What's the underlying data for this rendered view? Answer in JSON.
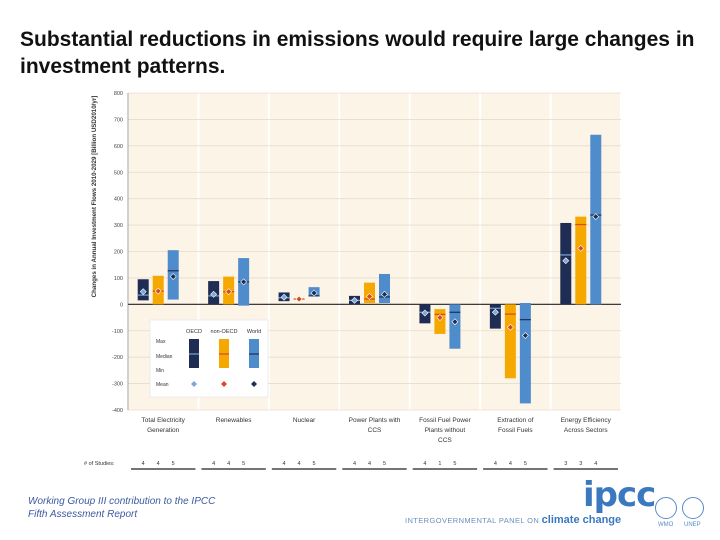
{
  "slide": {
    "title": "Substantial reductions in emissions would require large changes in investment patterns.",
    "footer": "Working Group III contribution to the IPCC Fifth Assessment Report",
    "logo": {
      "name": "ipcc",
      "tagline_prefix": "INTERGOVERNMENTAL PANEL ON",
      "tagline_emphasis": "climate change",
      "partners": [
        "WMO",
        "UNEP"
      ]
    }
  },
  "chart_data": {
    "type": "bar",
    "subtype": "range-bar (min-max with median and mean)",
    "ylabel": "Changes in Annual Investment Flows 2010-2029 [Billion USD2010/yr]",
    "ylim": [
      -400,
      800
    ],
    "yticks": [
      800,
      700,
      600,
      500,
      400,
      300,
      200,
      100,
      0,
      -100,
      -200,
      -300,
      -400
    ],
    "grid": true,
    "categories": [
      "Total Electricity Generation",
      "Renewables",
      "Nuclear",
      "Power Plants with CCS",
      "Fossil Fuel Power Plants without CCS",
      "Extraction of Fossil Fuels",
      "Energy Efficiency Across Sectors"
    ],
    "series": [
      {
        "name": "OECD",
        "color": "#1f2d55",
        "median_color": "#7aa6d8",
        "mean_color": "#7aa6d8",
        "min": [
          15,
          0,
          12,
          0,
          -72,
          -92,
          0
        ],
        "max": [
          95,
          88,
          45,
          32,
          0,
          0,
          308
        ],
        "median": [
          35,
          32,
          25,
          15,
          -30,
          -15,
          187
        ],
        "mean": [
          48,
          38,
          27,
          15,
          -33,
          -30,
          165
        ],
        "n_studies": [
          4,
          4,
          4,
          4,
          4,
          4,
          3
        ]
      },
      {
        "name": "non-OECD",
        "color": "#f5a800",
        "median_color": "#d9481e",
        "mean_color": "#d9481e",
        "min": [
          0,
          0,
          20,
          5,
          -112,
          -280,
          0
        ],
        "max": [
          108,
          105,
          20,
          82,
          -18,
          0,
          332
        ],
        "median": [
          50,
          48,
          20,
          20,
          -38,
          -37,
          302
        ],
        "mean": [
          50,
          48,
          20,
          30,
          -50,
          -87,
          212
        ],
        "n_studies": [
          4,
          4,
          4,
          4,
          1,
          4,
          3
        ]
      },
      {
        "name": "World",
        "color": "#4f8ccc",
        "median_color": "#1f2d55",
        "mean_color": "#1f2d55",
        "min": [
          18,
          -5,
          32,
          5,
          -168,
          -375,
          0
        ],
        "max": [
          205,
          175,
          65,
          115,
          0,
          5,
          642
        ],
        "median": [
          127,
          85,
          32,
          28,
          -30,
          -58,
          338
        ],
        "mean": [
          105,
          85,
          43,
          38,
          -66,
          -118,
          332
        ],
        "n_studies": [
          5,
          5,
          5,
          5,
          5,
          5,
          4
        ]
      }
    ],
    "legend": {
      "placement": "bottom-left",
      "columns": [
        "OECD",
        "non-OECD",
        "World"
      ],
      "rows": [
        "Max",
        "Median",
        "Min",
        "Mean"
      ]
    },
    "studies_label": "# of Studies:",
    "panel_bg": "#fdf4e8"
  }
}
